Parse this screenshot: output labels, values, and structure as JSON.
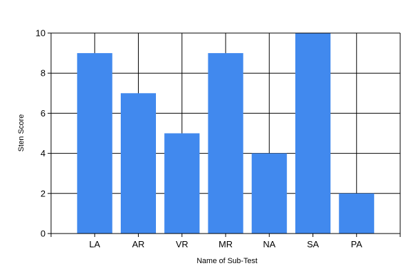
{
  "chart_data": {
    "type": "bar",
    "categories": [
      "LA",
      "AR",
      "VR",
      "MR",
      "NA",
      "SA",
      "PA"
    ],
    "values": [
      9,
      7,
      5,
      9,
      4,
      10,
      2
    ],
    "xlabel": "Name of Sub-Test",
    "ylabel": "Sten Score",
    "ylim": [
      0,
      10
    ],
    "yticks": [
      0,
      2,
      4,
      6,
      8,
      10
    ],
    "grid": true,
    "legend": "none",
    "bar_color": "#4189EE",
    "grid_color": "#000000"
  }
}
